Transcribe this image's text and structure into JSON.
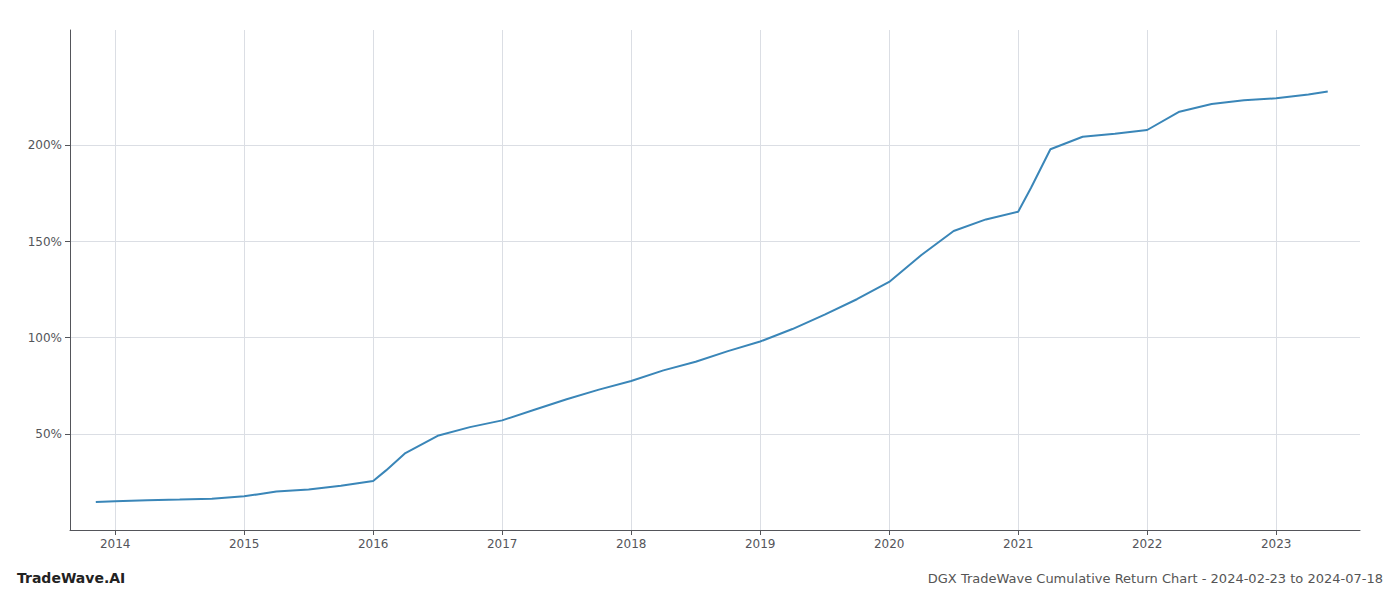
{
  "chart_data": {
    "type": "line",
    "title": "DGX TradeWave Cumulative Return Chart - 2024-02-23 to 2024-07-18",
    "annotations": [
      "TradeWave.AI"
    ],
    "color": "#3a86b8",
    "x": [
      2013.85,
      2014.0,
      2014.25,
      2014.5,
      2014.75,
      2015.0,
      2015.1,
      2015.25,
      2015.5,
      2015.75,
      2016.0,
      2016.1,
      2016.25,
      2016.5,
      2016.75,
      2017.0,
      2017.25,
      2017.5,
      2017.75,
      2018.0,
      2018.25,
      2018.5,
      2018.75,
      2019.0,
      2019.25,
      2019.5,
      2019.75,
      2020.0,
      2020.25,
      2020.5,
      2020.75,
      2021.0,
      2021.1,
      2021.25,
      2021.5,
      2021.75,
      2022.0,
      2022.25,
      2022.5,
      2022.75,
      2023.0,
      2023.25,
      2023.4
    ],
    "values": [
      0.145,
      0.15,
      0.155,
      0.158,
      0.162,
      0.175,
      0.185,
      0.2,
      0.21,
      0.23,
      0.255,
      0.31,
      0.4,
      0.49,
      0.535,
      0.57,
      0.625,
      0.68,
      0.73,
      0.775,
      0.83,
      0.875,
      0.93,
      0.98,
      1.045,
      1.12,
      1.2,
      1.29,
      1.43,
      1.555,
      1.615,
      1.655,
      1.78,
      1.98,
      2.045,
      2.06,
      2.08,
      2.175,
      2.215,
      2.235,
      2.245,
      2.265,
      2.28
    ],
    "xlim": [
      2013.65,
      2023.65
    ],
    "xticks": [
      2014,
      2015,
      2016,
      2017,
      2018,
      2019,
      2020,
      2021,
      2022,
      2023
    ],
    "ylim": [
      0.0,
      2.6
    ],
    "yticks": [
      {
        "value": 0.5,
        "label": "50%"
      },
      {
        "value": 1.0,
        "label": "100%"
      },
      {
        "value": 1.5,
        "label": "150%"
      },
      {
        "value": 2.0,
        "label": "200%"
      }
    ],
    "grid": true
  }
}
